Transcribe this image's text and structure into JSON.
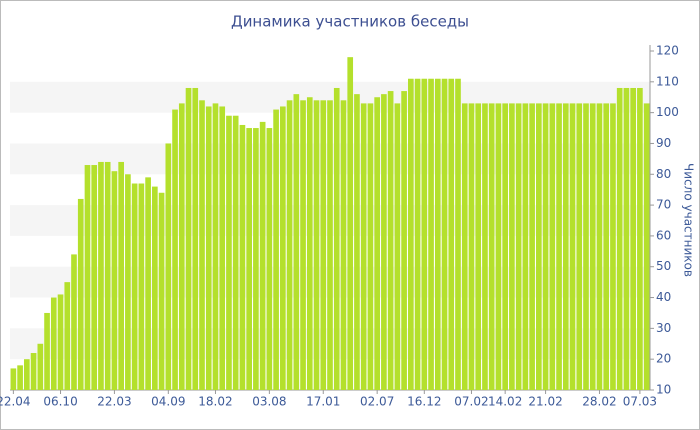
{
  "chart_data": {
    "type": "bar",
    "title": "Динамика участников беседы",
    "y_label": "Число участников",
    "categories": [
      "22.04",
      null,
      null,
      null,
      null,
      null,
      null,
      "06.10",
      null,
      null,
      null,
      null,
      null,
      null,
      null,
      "22.03",
      null,
      null,
      null,
      null,
      null,
      null,
      null,
      "04.09",
      null,
      null,
      null,
      null,
      null,
      null,
      "18.02",
      null,
      null,
      null,
      null,
      null,
      null,
      null,
      "03.08",
      null,
      null,
      null,
      null,
      null,
      null,
      null,
      "17.01",
      null,
      null,
      null,
      null,
      null,
      null,
      null,
      "02.07",
      null,
      null,
      null,
      null,
      null,
      null,
      "16.12",
      null,
      null,
      null,
      null,
      null,
      null,
      "07.02",
      null,
      null,
      null,
      null,
      "14.02",
      null,
      null,
      null,
      null,
      null,
      "21.02",
      null,
      null,
      null,
      null,
      null,
      null,
      null,
      "28.02",
      null,
      null,
      null,
      null,
      null,
      "07.03",
      null
    ],
    "values": [
      17,
      18,
      20,
      22,
      25,
      35,
      40,
      41,
      45,
      54,
      72,
      83,
      83,
      84,
      84,
      81,
      84,
      80,
      77,
      77,
      79,
      76,
      74,
      90,
      101,
      103,
      108,
      108,
      104,
      102,
      103,
      102,
      99,
      99,
      96,
      95,
      95,
      97,
      95,
      101,
      102,
      104,
      106,
      104,
      105,
      104,
      104,
      104,
      108,
      104,
      118,
      106,
      103,
      103,
      105,
      106,
      107,
      103,
      107,
      111,
      111,
      111,
      111,
      111,
      111,
      111,
      111,
      103,
      103,
      103,
      103,
      103,
      103,
      103,
      103,
      103,
      103,
      103,
      103,
      103,
      103,
      103,
      103,
      103,
      103,
      103,
      103,
      103,
      103,
      103,
      108,
      108,
      108,
      108,
      103
    ],
    "color": "#b4e02c",
    "ylim": [
      10,
      120
    ],
    "yticks": [
      10,
      20,
      30,
      40,
      50,
      60,
      70,
      80,
      90,
      100,
      110,
      120
    ],
    "grid": true
  }
}
